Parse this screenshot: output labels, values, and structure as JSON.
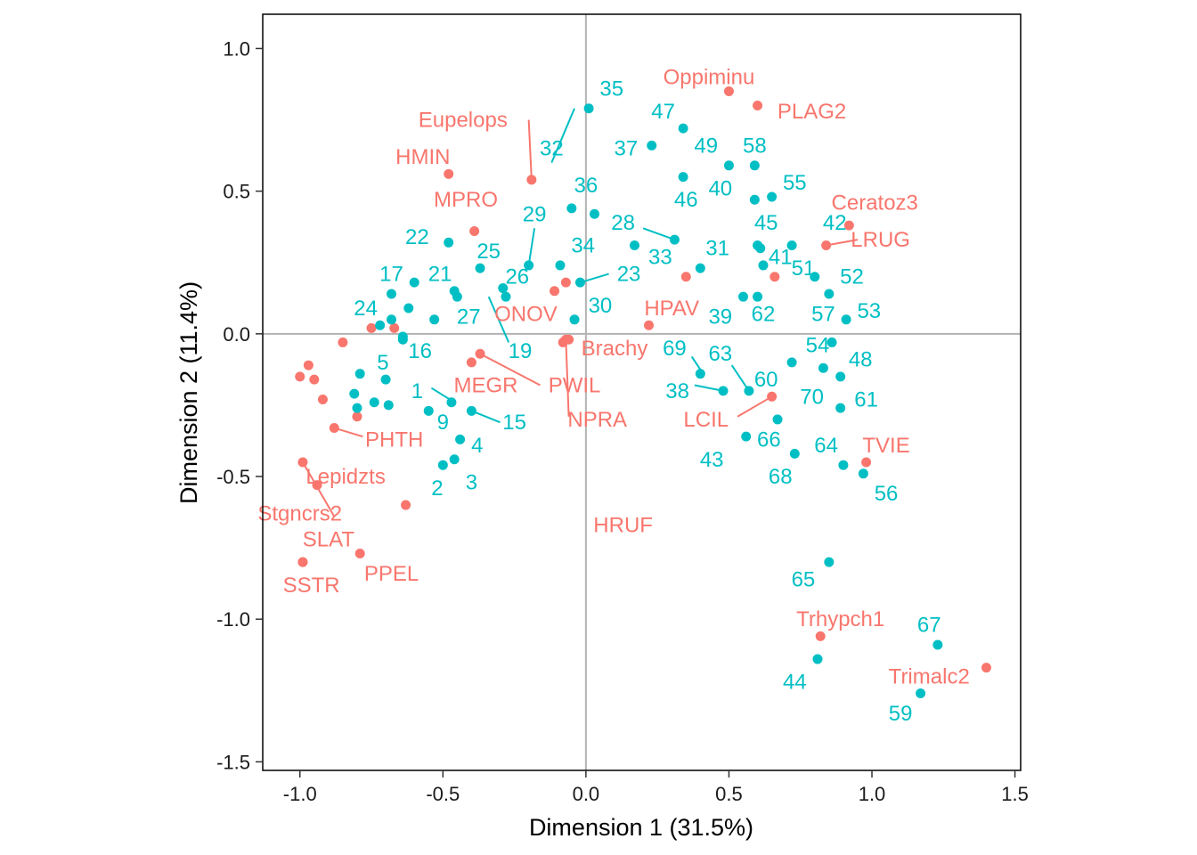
{
  "chart_data": {
    "type": "scatter",
    "xlabel": "Dimension 1 (31.5%)",
    "ylabel": "Dimension 2 (11.4%)",
    "xlim": [
      -1.13,
      1.52
    ],
    "ylim": [
      -1.53,
      1.12
    ],
    "x_ticks": [
      -1.0,
      -0.5,
      0.0,
      0.5,
      1.0,
      1.5
    ],
    "x_tick_labels": [
      "-1.0",
      "-0.5",
      "0.0",
      "0.5",
      "1.0",
      "1.5"
    ],
    "y_ticks": [
      -1.5,
      -1.0,
      -0.5,
      0.0,
      0.5,
      1.0
    ],
    "y_tick_labels": [
      "-1.5",
      "-1.0",
      "-0.5",
      "0.0",
      "0.5",
      "1.0"
    ],
    "reference_lines": {
      "x": 0,
      "y": 0
    },
    "grid": false,
    "legend": "none",
    "series": [
      {
        "color": "#F8766D",
        "points": [
          {
            "x": 0.5,
            "y": 0.85,
            "label": "Oppiminu",
            "lx": 0.43,
            "ly": 0.9
          },
          {
            "x": 0.6,
            "y": 0.8,
            "label": "PLAG2",
            "lx": 0.79,
            "ly": 0.78
          },
          {
            "x": -0.19,
            "y": 0.54,
            "label": "Eupelops",
            "lx": -0.43,
            "ly": 0.75
          },
          {
            "x": -0.48,
            "y": 0.56,
            "label": "HMIN",
            "lx": -0.57,
            "ly": 0.62
          },
          {
            "x": -0.39,
            "y": 0.36,
            "label": "MPRO",
            "lx": -0.42,
            "ly": 0.47
          },
          {
            "x": 0.92,
            "y": 0.38,
            "label": "Ceratoz3",
            "lx": 1.01,
            "ly": 0.46
          },
          {
            "x": 0.84,
            "y": 0.31,
            "label": "LRUG",
            "lx": 1.03,
            "ly": 0.33
          },
          {
            "x": -0.07,
            "y": 0.18,
            "label": "ONOV",
            "lx": -0.21,
            "ly": 0.07
          },
          {
            "x": 0.22,
            "y": 0.03,
            "label": "HPAV",
            "lx": 0.3,
            "ly": 0.09
          },
          {
            "x": -0.06,
            "y": -0.02,
            "label": "Brachy",
            "lx": 0.1,
            "ly": -0.05
          },
          {
            "x": -0.37,
            "y": -0.07,
            "label": "PWIL",
            "lx": -0.04,
            "ly": -0.18
          },
          {
            "x": -0.4,
            "y": -0.1,
            "label": "MEGR",
            "lx": -0.35,
            "ly": -0.18
          },
          {
            "x": -0.07,
            "y": -0.02,
            "label": "NPRA",
            "lx": 0.04,
            "ly": -0.3
          },
          {
            "x": 0.65,
            "y": -0.22,
            "label": "LCIL",
            "lx": 0.42,
            "ly": -0.3
          },
          {
            "x": -0.88,
            "y": -0.33,
            "label": "PHTH",
            "lx": -0.67,
            "ly": -0.37
          },
          {
            "x": 0.98,
            "y": -0.45,
            "label": "TVIE",
            "lx": 1.05,
            "ly": -0.39
          },
          {
            "x": -0.99,
            "y": -0.45,
            "label": "Lepidzts",
            "lx": -0.84,
            "ly": -0.5
          },
          {
            "x": -0.63,
            "y": -0.6,
            "label": "HRUF",
            "lx": 0.13,
            "ly": -0.67
          },
          {
            "x": -0.94,
            "y": -0.53,
            "label": "Stgncrs2",
            "lx": -1.0,
            "ly": -0.63
          },
          {
            "x": -0.79,
            "y": -0.77,
            "label": "SLAT",
            "lx": -0.9,
            "ly": -0.72
          },
          {
            "x": -0.99,
            "y": -0.8,
            "label": "PPEL",
            "lx": -0.68,
            "ly": -0.84
          },
          {
            "x": -0.99,
            "y": -0.8,
            "label": "SSTR",
            "lx": -0.96,
            "ly": -0.88
          },
          {
            "x": 0.82,
            "y": -1.06,
            "label": "Trhypch1",
            "lx": 0.89,
            "ly": -1.0
          },
          {
            "x": 1.4,
            "y": -1.17,
            "label": "Trimalc2",
            "lx": 1.2,
            "ly": -1.2
          },
          {
            "x": -0.97,
            "y": -0.11
          },
          {
            "x": -0.95,
            "y": -0.16
          },
          {
            "x": -0.92,
            "y": -0.23
          },
          {
            "x": -0.8,
            "y": -0.29
          },
          {
            "x": -1.0,
            "y": -0.15
          },
          {
            "x": -0.85,
            "y": -0.03
          },
          {
            "x": -0.75,
            "y": 0.02
          },
          {
            "x": -0.67,
            "y": 0.02
          },
          {
            "x": -0.11,
            "y": 0.15
          },
          {
            "x": 0.35,
            "y": 0.2
          },
          {
            "x": 0.66,
            "y": 0.2
          },
          {
            "x": -0.08,
            "y": -0.03
          }
        ]
      },
      {
        "color": "#00BFC4",
        "points": [
          {
            "x": 0.01,
            "y": 0.79,
            "label": "35",
            "lx": 0.09,
            "ly": 0.86
          },
          {
            "x": 0.34,
            "y": 0.72,
            "label": "47",
            "lx": 0.27,
            "ly": 0.78
          },
          {
            "x": 0.23,
            "y": 0.66,
            "label": "37",
            "lx": 0.14,
            "ly": 0.65
          },
          {
            "x": 0.5,
            "y": 0.59,
            "label": "49",
            "lx": 0.42,
            "ly": 0.66
          },
          {
            "x": 0.59,
            "y": 0.59,
            "label": "58",
            "lx": 0.59,
            "ly": 0.66
          },
          {
            "x": 0.34,
            "y": 0.55,
            "label": "40",
            "lx": 0.47,
            "ly": 0.51
          },
          {
            "x": 0.65,
            "y": 0.48,
            "label": "55",
            "lx": 0.73,
            "ly": 0.53
          },
          {
            "x": -0.05,
            "y": 0.44,
            "label": "32",
            "lx": -0.12,
            "ly": 0.65
          },
          {
            "x": 0.03,
            "y": 0.42,
            "label": "36",
            "lx": 0.0,
            "ly": 0.52
          },
          {
            "x": 0.59,
            "y": 0.47,
            "label": "46",
            "lx": 0.35,
            "ly": 0.47
          },
          {
            "x": -0.2,
            "y": 0.24,
            "label": "29",
            "lx": -0.18,
            "ly": 0.42
          },
          {
            "x": 0.31,
            "y": 0.33,
            "label": "28",
            "lx": 0.13,
            "ly": 0.39
          },
          {
            "x": 0.6,
            "y": 0.31,
            "label": "45",
            "lx": 0.63,
            "ly": 0.39
          },
          {
            "x": 0.72,
            "y": 0.31,
            "label": "42",
            "lx": 0.87,
            "ly": 0.39
          },
          {
            "x": -0.48,
            "y": 0.32,
            "label": "22",
            "lx": -0.59,
            "ly": 0.34
          },
          {
            "x": -0.37,
            "y": 0.23,
            "label": "25",
            "lx": -0.34,
            "ly": 0.29
          },
          {
            "x": -0.09,
            "y": 0.24,
            "label": "34",
            "lx": -0.01,
            "ly": 0.31
          },
          {
            "x": 0.17,
            "y": 0.31,
            "label": "33",
            "lx": 0.26,
            "ly": 0.27
          },
          {
            "x": 0.4,
            "y": 0.23,
            "label": "31",
            "lx": 0.46,
            "ly": 0.3
          },
          {
            "x": 0.61,
            "y": 0.3,
            "label": "41",
            "lx": 0.68,
            "ly": 0.27
          },
          {
            "x": -0.6,
            "y": 0.18,
            "label": "21",
            "lx": -0.51,
            "ly": 0.21
          },
          {
            "x": -0.68,
            "y": 0.14,
            "label": "17",
            "lx": -0.68,
            "ly": 0.21
          },
          {
            "x": -0.29,
            "y": 0.16,
            "label": "26",
            "lx": -0.24,
            "ly": 0.2
          },
          {
            "x": -0.02,
            "y": 0.18,
            "label": "23",
            "lx": 0.15,
            "ly": 0.21
          },
          {
            "x": 0.62,
            "y": 0.24,
            "label": "51",
            "lx": 0.76,
            "ly": 0.23
          },
          {
            "x": 0.8,
            "y": 0.2,
            "label": "52",
            "lx": 0.93,
            "ly": 0.2
          },
          {
            "x": -0.46,
            "y": 0.15,
            "label": "27",
            "lx": -0.41,
            "ly": 0.06
          },
          {
            "x": -0.72,
            "y": 0.03,
            "label": "24",
            "lx": -0.77,
            "ly": 0.09
          },
          {
            "x": -0.04,
            "y": 0.05,
            "label": "30",
            "lx": 0.05,
            "ly": 0.1
          },
          {
            "x": 0.55,
            "y": 0.13,
            "label": "39",
            "lx": 0.47,
            "ly": 0.06
          },
          {
            "x": 0.6,
            "y": 0.13,
            "label": "62",
            "lx": 0.62,
            "ly": 0.07
          },
          {
            "x": 0.85,
            "y": 0.14,
            "label": "57",
            "lx": 0.83,
            "ly": 0.07
          },
          {
            "x": 0.91,
            "y": 0.05,
            "label": "53",
            "lx": 0.99,
            "ly": 0.08
          },
          {
            "x": -0.28,
            "y": 0.13,
            "label": "19",
            "lx": -0.23,
            "ly": -0.06
          },
          {
            "x": -0.64,
            "y": -0.01,
            "label": "16",
            "lx": -0.58,
            "ly": -0.06
          },
          {
            "x": 0.4,
            "y": -0.14,
            "label": "69",
            "lx": 0.31,
            "ly": -0.05
          },
          {
            "x": 0.57,
            "y": -0.2,
            "label": "63",
            "lx": 0.47,
            "ly": -0.07
          },
          {
            "x": 0.72,
            "y": -0.1,
            "label": "54",
            "lx": 0.81,
            "ly": -0.04
          },
          {
            "x": -0.79,
            "y": -0.14,
            "label": "5",
            "lx": -0.71,
            "ly": -0.1
          },
          {
            "x": 0.86,
            "y": -0.03,
            "label": "48",
            "lx": 0.96,
            "ly": -0.09
          },
          {
            "x": 0.89,
            "y": -0.15,
            "label": "60",
            "lx": 0.63,
            "ly": -0.16
          },
          {
            "x": -0.47,
            "y": -0.24,
            "label": "1",
            "lx": -0.59,
            "ly": -0.2
          },
          {
            "x": 0.48,
            "y": -0.2,
            "label": "38",
            "lx": 0.32,
            "ly": -0.2
          },
          {
            "x": 0.83,
            "y": -0.12,
            "label": "70",
            "lx": 0.79,
            "ly": -0.22
          },
          {
            "x": 0.89,
            "y": -0.26,
            "label": "61",
            "lx": 0.98,
            "ly": -0.23
          },
          {
            "x": -0.4,
            "y": -0.27,
            "label": "15",
            "lx": -0.25,
            "ly": -0.31
          },
          {
            "x": -0.55,
            "y": -0.27,
            "label": "9",
            "lx": -0.5,
            "ly": -0.31
          },
          {
            "x": -0.44,
            "y": -0.37,
            "label": "4",
            "lx": -0.38,
            "ly": -0.39
          },
          {
            "x": 0.67,
            "y": -0.3,
            "label": "66",
            "lx": 0.64,
            "ly": -0.37
          },
          {
            "x": 0.56,
            "y": -0.36,
            "label": "43",
            "lx": 0.44,
            "ly": -0.44
          },
          {
            "x": 0.73,
            "y": -0.42,
            "label": "64",
            "lx": 0.84,
            "ly": -0.39
          },
          {
            "x": -0.5,
            "y": -0.46,
            "label": "2",
            "lx": -0.52,
            "ly": -0.54
          },
          {
            "x": -0.46,
            "y": -0.44,
            "label": "3",
            "lx": -0.4,
            "ly": -0.52
          },
          {
            "x": 0.9,
            "y": -0.46,
            "label": "68",
            "lx": 0.68,
            "ly": -0.5
          },
          {
            "x": 0.97,
            "y": -0.49,
            "label": "56",
            "lx": 1.05,
            "ly": -0.56
          },
          {
            "x": 0.85,
            "y": -0.8,
            "label": "65",
            "lx": 0.76,
            "ly": -0.86
          },
          {
            "x": 1.23,
            "y": -1.09,
            "label": "67",
            "lx": 1.2,
            "ly": -1.02
          },
          {
            "x": 0.81,
            "y": -1.14,
            "label": "44",
            "lx": 0.73,
            "ly": -1.22
          },
          {
            "x": 1.17,
            "y": -1.26,
            "label": "59",
            "lx": 1.1,
            "ly": -1.33
          },
          {
            "x": -0.68,
            "y": 0.05
          },
          {
            "x": -0.62,
            "y": 0.09
          },
          {
            "x": -0.64,
            "y": -0.02
          },
          {
            "x": -0.45,
            "y": 0.13
          },
          {
            "x": -0.53,
            "y": 0.05
          },
          {
            "x": -0.69,
            "y": -0.25
          },
          {
            "x": -0.74,
            "y": -0.24
          },
          {
            "x": -0.8,
            "y": -0.26
          },
          {
            "x": -0.7,
            "y": -0.16
          },
          {
            "x": -0.81,
            "y": -0.21
          }
        ]
      }
    ],
    "leaders": [
      {
        "from": [
          -0.19,
          0.54
        ],
        "to": [
          -0.2,
          0.75
        ],
        "color": "#F8766D"
      },
      {
        "from": [
          0.84,
          0.31
        ],
        "to": [
          0.95,
          0.33
        ],
        "color": "#F8766D"
      },
      {
        "from": [
          -0.37,
          -0.07
        ],
        "to": [
          -0.16,
          -0.18
        ],
        "color": "#F8766D"
      },
      {
        "from": [
          -0.07,
          -0.02
        ],
        "to": [
          -0.06,
          -0.29
        ],
        "color": "#F8766D"
      },
      {
        "from": [
          0.65,
          -0.22
        ],
        "to": [
          0.53,
          -0.29
        ],
        "color": "#F8766D"
      },
      {
        "from": [
          -0.88,
          -0.33
        ],
        "to": [
          -0.78,
          -0.36
        ],
        "color": "#F8766D"
      },
      {
        "from": [
          -0.99,
          -0.45
        ],
        "to": [
          -0.88,
          -0.64
        ],
        "color": "#F8766D"
      },
      {
        "from": [
          -0.04,
          0.79
        ],
        "to": [
          -0.12,
          0.6
        ],
        "color": "#00BFC4"
      },
      {
        "from": [
          -0.2,
          0.24
        ],
        "to": [
          -0.18,
          0.37
        ],
        "color": "#00BFC4"
      },
      {
        "from": [
          0.31,
          0.33
        ],
        "to": [
          0.2,
          0.37
        ],
        "color": "#00BFC4"
      },
      {
        "from": [
          -0.02,
          0.18
        ],
        "to": [
          0.08,
          0.21
        ],
        "color": "#00BFC4"
      },
      {
        "from": [
          -0.34,
          0.13
        ],
        "to": [
          -0.27,
          -0.03
        ],
        "color": "#00BFC4"
      },
      {
        "from": [
          0.41,
          -0.14
        ],
        "to": [
          0.37,
          -0.08
        ],
        "color": "#00BFC4"
      },
      {
        "from": [
          0.57,
          -0.2
        ],
        "to": [
          0.51,
          -0.11
        ],
        "color": "#00BFC4"
      },
      {
        "from": [
          0.48,
          -0.2
        ],
        "to": [
          0.38,
          -0.18
        ],
        "color": "#00BFC4"
      },
      {
        "from": [
          -0.46,
          -0.24
        ],
        "to": [
          -0.54,
          -0.19
        ],
        "color": "#00BFC4"
      },
      {
        "from": [
          -0.4,
          -0.27
        ],
        "to": [
          -0.3,
          -0.31
        ],
        "color": "#00BFC4"
      }
    ]
  }
}
